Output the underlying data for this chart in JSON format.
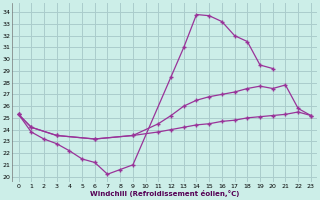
{
  "bg_color": "#cceee8",
  "grid_color": "#aacccc",
  "line_color": "#993399",
  "xlabel": "Windchill (Refroidissement éolien,°C)",
  "x_ticks": [
    0,
    1,
    2,
    3,
    4,
    5,
    6,
    7,
    8,
    9,
    10,
    11,
    12,
    13,
    14,
    15,
    16,
    17,
    18,
    19,
    20,
    21,
    22,
    23
  ],
  "y_ticks": [
    20,
    21,
    22,
    23,
    24,
    25,
    26,
    27,
    28,
    29,
    30,
    31,
    32,
    33,
    34
  ],
  "ylim": [
    19.5,
    34.8
  ],
  "xlim": [
    -0.5,
    23.5
  ],
  "line1_x": [
    0,
    1,
    2,
    3,
    4,
    5,
    6,
    7,
    8,
    9,
    12,
    13,
    14,
    15,
    16,
    17,
    18,
    19,
    20
  ],
  "line1_y": [
    25.3,
    23.8,
    23.2,
    22.8,
    22.2,
    21.5,
    21.2,
    20.2,
    20.6,
    21.0,
    28.5,
    31.0,
    33.8,
    33.7,
    33.2,
    32.0,
    31.5,
    29.5,
    29.2
  ],
  "line2_x": [
    0,
    1,
    3,
    6,
    9,
    11,
    12,
    13,
    14,
    15,
    16,
    17,
    18,
    19,
    20,
    21,
    22,
    23
  ],
  "line2_y": [
    25.3,
    24.2,
    23.5,
    23.2,
    23.5,
    24.5,
    25.2,
    26.0,
    26.5,
    26.8,
    27.0,
    27.2,
    27.5,
    27.7,
    27.5,
    27.8,
    25.8,
    25.2
  ],
  "line3_x": [
    0,
    1,
    3,
    6,
    9,
    11,
    12,
    13,
    14,
    15,
    16,
    17,
    18,
    19,
    20,
    21,
    22,
    23
  ],
  "line3_y": [
    25.3,
    24.2,
    23.5,
    23.2,
    23.5,
    23.8,
    24.0,
    24.2,
    24.4,
    24.5,
    24.7,
    24.8,
    25.0,
    25.1,
    25.2,
    25.3,
    25.5,
    25.2
  ]
}
